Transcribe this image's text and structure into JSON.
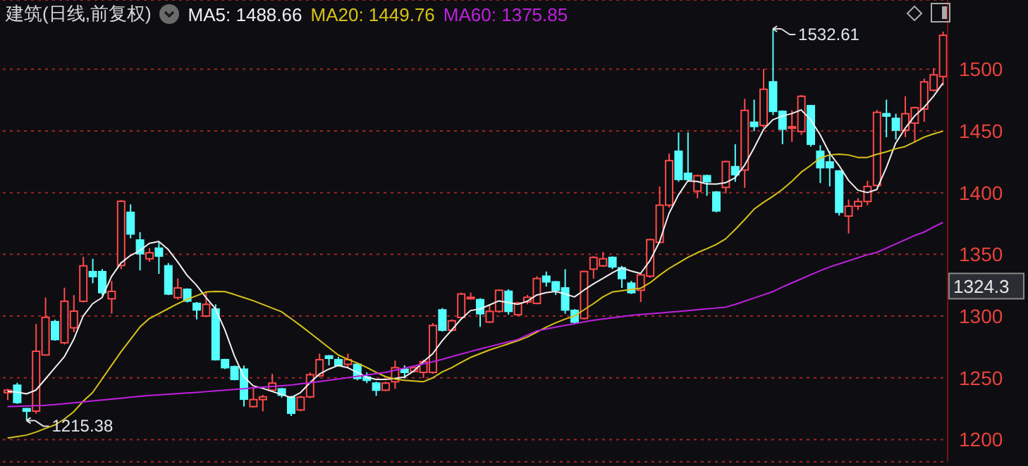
{
  "chart_data": {
    "type": "candlestick",
    "title": "建筑(日线,前复权)",
    "categories": [
      null,
      null,
      null,
      null,
      null,
      null,
      null,
      null,
      null,
      null,
      null,
      null,
      null,
      null,
      null,
      null,
      null,
      null,
      null,
      null,
      null,
      null,
      null,
      null,
      null,
      null,
      null,
      null,
      null,
      null,
      null,
      null,
      null,
      null,
      null,
      null,
      null,
      null,
      null,
      null,
      null,
      null,
      null,
      null,
      null,
      null,
      null,
      null,
      null,
      null,
      null,
      null,
      null,
      null,
      null,
      null,
      null,
      null,
      null,
      null,
      null,
      null,
      null,
      null,
      null,
      null,
      null,
      null,
      null,
      null,
      null,
      null,
      null,
      null,
      null,
      null,
      null,
      null,
      null,
      null,
      null,
      null,
      null,
      null,
      null,
      null,
      null,
      null,
      null,
      null,
      null,
      null,
      null,
      null,
      null,
      null,
      null,
      null,
      null,
      null
    ],
    "ohlc": [
      [
        1238,
        1241,
        1232,
        1240
      ],
      [
        1244,
        1246,
        1229,
        1230
      ],
      [
        1225,
        1225.5,
        1215.38,
        1223
      ],
      [
        1223,
        1293.5,
        1221,
        1271.5
      ],
      [
        1268.5,
        1315,
        1268,
        1299
      ],
      [
        1295.5,
        1297,
        1280,
        1281
      ],
      [
        1278.4,
        1323,
        1277,
        1312
      ],
      [
        1290.5,
        1317,
        1287,
        1304
      ],
      [
        1312,
        1348,
        1311,
        1340.7
      ],
      [
        1336,
        1346.4,
        1326.6,
        1332
      ],
      [
        1336,
        1338,
        1317,
        1319
      ],
      [
        1314,
        1328.5,
        1302,
        1320
      ],
      [
        1341,
        1394,
        1338,
        1393
      ],
      [
        1384,
        1390.5,
        1363,
        1366.5
      ],
      [
        1361.6,
        1368,
        1337,
        1350.5
      ],
      [
        1346.4,
        1355,
        1344,
        1351.3
      ],
      [
        1355,
        1359.7,
        1334.2,
        1348.6
      ],
      [
        1340.7,
        1343,
        1317,
        1317.9
      ],
      [
        1315,
        1330.4,
        1313.3,
        1322.8
      ],
      [
        1321.7,
        1322.5,
        1311,
        1312.2
      ],
      [
        1310.3,
        1311.4,
        1297.3,
        1305
      ],
      [
        1300,
        1320,
        1299.2,
        1309.5
      ],
      [
        1305.7,
        1309.5,
        1264,
        1264.7
      ],
      [
        1264.7,
        1265.4,
        1257,
        1258.2
      ],
      [
        1259,
        1260,
        1248,
        1248.7
      ],
      [
        1257,
        1260,
        1226.7,
        1232.7
      ],
      [
        1226.7,
        1241.9,
        1226,
        1232.4
      ],
      [
        1232.4,
        1236.2,
        1222.9,
        1234.6
      ],
      [
        1240,
        1253.3,
        1239.2,
        1245.7
      ],
      [
        1241,
        1241.9,
        1234,
        1236
      ],
      [
        1234.3,
        1235.4,
        1219,
        1221.3
      ],
      [
        1224,
        1235.4,
        1222.9,
        1234.3
      ],
      [
        1234.6,
        1254.4,
        1233.5,
        1252.5
      ],
      [
        1251.7,
        1269.6,
        1250.6,
        1264.7
      ],
      [
        1267.7,
        1268.5,
        1260.1,
        1265.8
      ],
      [
        1264.7,
        1267,
        1259.3,
        1260.1
      ],
      [
        1260.9,
        1269.6,
        1258.2,
        1264.7
      ],
      [
        1260.9,
        1262,
        1248,
        1249.5
      ],
      [
        1250.6,
        1254.4,
        1245.7,
        1248
      ],
      [
        1245.7,
        1246.8,
        1235.4,
        1240
      ],
      [
        1240,
        1246.8,
        1239.2,
        1245.7
      ],
      [
        1246.8,
        1263.9,
        1241.1,
        1258.2
      ],
      [
        1257,
        1260.1,
        1249.5,
        1254.4
      ],
      [
        1255.2,
        1259.3,
        1254.4,
        1258.2
      ],
      [
        1254.4,
        1264.7,
        1249.8,
        1263.1
      ],
      [
        1254.4,
        1294.3,
        1253.3,
        1292.4
      ],
      [
        1305,
        1306.5,
        1287.5,
        1288.6
      ],
      [
        1288.6,
        1297.3,
        1287.5,
        1296.2
      ],
      [
        1298.9,
        1319,
        1297.3,
        1317.9
      ],
      [
        1314.1,
        1319,
        1313.3,
        1315.2
      ],
      [
        1313.3,
        1314.4,
        1291.3,
        1301.9
      ],
      [
        1295.2,
        1309.5,
        1294.3,
        1303.8
      ],
      [
        1303.8,
        1321.7,
        1302.7,
        1320.9
      ],
      [
        1320.1,
        1321.7,
        1301.1,
        1303.8
      ],
      [
        1301.1,
        1311.4,
        1300,
        1310.6
      ],
      [
        1311.4,
        1317.1,
        1309.5,
        1315.2
      ],
      [
        1310.3,
        1332.3,
        1309.5,
        1330.4
      ],
      [
        1332.3,
        1336.1,
        1323.9,
        1327.7
      ],
      [
        1327.7,
        1328.5,
        1317.1,
        1320.9
      ],
      [
        1322.8,
        1338,
        1301.9,
        1304.9
      ],
      [
        1304.6,
        1305.7,
        1294.3,
        1295.1
      ],
      [
        1298.1,
        1336.9,
        1297.3,
        1336.1
      ],
      [
        1338,
        1348.6,
        1330.4,
        1347.5
      ],
      [
        1340.7,
        1352,
        1339.9,
        1346.4
      ],
      [
        1347.5,
        1348.3,
        1338,
        1339.9
      ],
      [
        1339.1,
        1340.7,
        1322.8,
        1330.4
      ],
      [
        1326.6,
        1328.5,
        1317.9,
        1319
      ],
      [
        1320.9,
        1334.2,
        1311.4,
        1333.4
      ],
      [
        1332.3,
        1362.7,
        1331,
        1361.9
      ],
      [
        1359.7,
        1405,
        1359,
        1389.8
      ],
      [
        1389.8,
        1431.6,
        1387.9,
        1425.9
      ],
      [
        1433.5,
        1448.7,
        1408.8,
        1410.7
      ],
      [
        1415.6,
        1448.7,
        1409,
        1410.7
      ],
      [
        1401.2,
        1414.5,
        1395.5,
        1413.7
      ],
      [
        1413.7,
        1414.5,
        1397.4,
        1408.8
      ],
      [
        1400.4,
        1401.2,
        1384.1,
        1385.2
      ],
      [
        1404.2,
        1425.9,
        1399.3,
        1425.1
      ],
      [
        1421,
        1439.2,
        1408.8,
        1414.5
      ],
      [
        1418.3,
        1476,
        1403.9,
        1466.6
      ],
      [
        1457,
        1475.3,
        1449.8,
        1453.6
      ],
      [
        1454.4,
        1500,
        1452.5,
        1483.7
      ],
      [
        1489.7,
        1532.61,
        1462.8,
        1465.8
      ],
      [
        1465.8,
        1466.6,
        1439.2,
        1451.4
      ],
      [
        1452.5,
        1466.6,
        1441.1,
        1453.3
      ],
      [
        1449.5,
        1479.1,
        1446.8,
        1478
      ],
      [
        1470.4,
        1471,
        1437.3,
        1439.2
      ],
      [
        1433.5,
        1438.4,
        1407.7,
        1420.2
      ],
      [
        1424.8,
        1433.5,
        1405,
        1420.2
      ],
      [
        1417.5,
        1418.3,
        1381.4,
        1384.1
      ],
      [
        1381,
        1394.4,
        1367,
        1389
      ],
      [
        1389,
        1395.5,
        1386,
        1392.8
      ],
      [
        1392.8,
        1409.6,
        1389.8,
        1405
      ],
      [
        1405.8,
        1466.9,
        1405,
        1465
      ],
      [
        1463.9,
        1475.3,
        1444.9,
        1462
      ],
      [
        1460.1,
        1463.9,
        1443,
        1450.6
      ],
      [
        1450.6,
        1478,
        1444.9,
        1463.9
      ],
      [
        1456.3,
        1469.6,
        1441.1,
        1468.8
      ],
      [
        1467.7,
        1492.4,
        1457.4,
        1489.7
      ],
      [
        1482.9,
        1500.8,
        1481.8,
        1495.4
      ],
      [
        1494,
        1530.4,
        1486.7,
        1527.4
      ]
    ],
    "colors": [
      "#ff4a4a",
      "#54ffff",
      "#54ffff",
      "#ff4a4a",
      "#ff4a4a",
      "#54ffff",
      "#ff4a4a",
      "#ff4a4a",
      "#ff4a4a",
      "#54ffff",
      "#54ffff",
      "#ff4a4a",
      "#ff4a4a",
      "#54ffff",
      "#54ffff",
      "#ff4a4a",
      "#54ffff",
      "#54ffff",
      "#ff4a4a",
      "#54ffff",
      "#54ffff",
      "#ff4a4a",
      "#54ffff",
      "#54ffff",
      "#54ffff",
      "#54ffff",
      "#ff4a4a",
      "#ff4a4a",
      "#ff4a4a",
      "#54ffff",
      "#54ffff",
      "#ff4a4a",
      "#ff4a4a",
      "#ff4a4a",
      "#54ffff",
      "#54ffff",
      "#ff4a4a",
      "#54ffff",
      "#54ffff",
      "#54ffff",
      "#ff4a4a",
      "#ff4a4a",
      "#54ffff",
      "#ff4a4a",
      "#ff4a4a",
      "#ff4a4a",
      "#54ffff",
      "#ff4a4a",
      "#ff4a4a",
      "#ff4a4a",
      "#54ffff",
      "#ff4a4a",
      "#ff4a4a",
      "#54ffff",
      "#ff4a4a",
      "#ff4a4a",
      "#ff4a4a",
      "#54ffff",
      "#54ffff",
      "#54ffff",
      "#54ffff",
      "#ff4a4a",
      "#ff4a4a",
      "#ff4a4a",
      "#54ffff",
      "#54ffff",
      "#54ffff",
      "#ff4a4a",
      "#ff4a4a",
      "#ff4a4a",
      "#ff4a4a",
      "#54ffff",
      "#54ffff",
      "#ff4a4a",
      "#54ffff",
      "#54ffff",
      "#ff4a4a",
      "#54ffff",
      "#ff4a4a",
      "#54ffff",
      "#ff4a4a",
      "#54ffff",
      "#54ffff",
      "#ff4a4a",
      "#ff4a4a",
      "#54ffff",
      "#54ffff",
      "#54ffff",
      "#54ffff",
      "#ff4a4a",
      "#ff4a4a",
      "#ff4a4a",
      "#ff4a4a",
      "#54ffff",
      "#54ffff",
      "#ff4a4a",
      "#ff4a4a",
      "#ff4a4a",
      "#ff4a4a",
      "#ff4a4a"
    ],
    "series": [
      {
        "name": "MA5: 1488.66",
        "type": "line",
        "color": "#f0f0f0",
        "values": [
          1239,
          1238.5,
          1237,
          1240,
          1249,
          1258,
          1267,
          1281,
          1300,
          1310,
          1315,
          1332,
          1343,
          1349,
          1353,
          1358.9,
          1360.5,
          1354,
          1344,
          1333,
          1325,
          1315,
          1306,
          1289,
          1268,
          1251,
          1243.5,
          1241.5,
          1239,
          1236.5,
          1234,
          1238,
          1246,
          1253,
          1257,
          1260,
          1258.2,
          1254.5,
          1250.6,
          1248.7,
          1248.7,
          1249.5,
          1250.6,
          1255.5,
          1263,
          1269.5,
          1280,
          1288.6,
          1297.5,
          1304.5,
          1305.7,
          1309,
          1312.3,
          1311,
          1309.5,
          1312,
          1317,
          1319,
          1320,
          1318,
          1315.5,
          1321,
          1326,
          1330.5,
          1335,
          1339,
          1336.5,
          1334.5,
          1345,
          1360,
          1383,
          1398,
          1409.5,
          1409,
          1407,
          1406.9,
          1408,
          1412,
          1422,
          1436,
          1451,
          1459,
          1462,
          1464,
          1467,
          1459,
          1447,
          1432,
          1422,
          1410,
          1402,
          1400,
          1402.5,
          1420,
          1440,
          1452,
          1462,
          1469,
          1478,
          1488.66
        ]
      },
      {
        "name": "MA20: 1449.76",
        "type": "line",
        "color": "#d8c21a",
        "values": [
          1201.2,
          1202.4,
          1203.6,
          1206,
          1209,
          1211.8,
          1216.5,
          1222.5,
          1231,
          1238,
          1249,
          1260,
          1271,
          1281,
          1291,
          1298,
          1302,
          1306,
          1310,
          1313.5,
          1316.5,
          1319.5,
          1320,
          1319.8,
          1317.5,
          1315,
          1312.5,
          1309.5,
          1306.5,
          1303.5,
          1298,
          1292.4,
          1286.5,
          1280.5,
          1274.5,
          1268.5,
          1265,
          1262,
          1258.5,
          1254.5,
          1251,
          1249,
          1248,
          1247.4,
          1246.8,
          1250,
          1254.8,
          1258.2,
          1262.5,
          1266.5,
          1269.5,
          1272.5,
          1275,
          1277.5,
          1280,
          1283,
          1287,
          1291,
          1294.5,
          1297.5,
          1300,
          1305,
          1310,
          1315.5,
          1319.5,
          1320.5,
          1321.5,
          1322.5,
          1327,
          1333,
          1338.5,
          1343,
          1347.5,
          1351.3,
          1354.5,
          1358,
          1362.5,
          1370,
          1378,
          1386.5,
          1392,
          1397,
          1402.5,
          1409,
          1416.5,
          1422,
          1428,
          1430.5,
          1431.2,
          1430.5,
          1428.5,
          1428.5,
          1431,
          1433,
          1435.5,
          1437.3,
          1441,
          1444.9,
          1447.5,
          1449.76
        ]
      },
      {
        "name": "MA60: 1375.85",
        "type": "line",
        "color": "#c020e0",
        "values": [
          1226.7,
          1226.9,
          1227.2,
          1227.4,
          1227.7,
          1228.3,
          1229,
          1229.8,
          1230.5,
          1231.3,
          1232,
          1232.8,
          1233.5,
          1234.3,
          1235,
          1235.7,
          1236.2,
          1236.7,
          1237.2,
          1237.7,
          1238.2,
          1238.8,
          1239.4,
          1240,
          1240.6,
          1241.2,
          1241.8,
          1242.4,
          1243,
          1243.6,
          1244.2,
          1245.1,
          1246,
          1247,
          1248,
          1249,
          1250.1,
          1251.2,
          1252.3,
          1253.4,
          1254.4,
          1256.1,
          1257.8,
          1259.5,
          1261.2,
          1263,
          1265,
          1267.1,
          1269.2,
          1271.3,
          1273.4,
          1275.3,
          1277.2,
          1279.1,
          1281,
          1284.5,
          1288,
          1289.5,
          1291,
          1292.4,
          1293.8,
          1295.3,
          1296.6,
          1297.6,
          1298.6,
          1299.6,
          1300.6,
          1301.3,
          1301.9,
          1302.5,
          1303.1,
          1303.7,
          1304.4,
          1305.1,
          1305.8,
          1306.5,
          1307.2,
          1309.4,
          1312,
          1314.6,
          1317.2,
          1319.8,
          1323.5,
          1326.8,
          1330.1,
          1333.4,
          1336.7,
          1339.7,
          1342.2,
          1344.7,
          1347.2,
          1349.7,
          1351.6,
          1355,
          1358.4,
          1361.8,
          1365.2,
          1368,
          1372,
          1375.85
        ]
      }
    ],
    "ylim": [
      1182,
      1556
    ],
    "yticks": [
      1200,
      1250,
      1300,
      1350,
      1400,
      1450,
      1500
    ],
    "grid": "y",
    "legend": "top left",
    "tick_labels": "y",
    "annotations": [
      "1532.61",
      "1215.38",
      "1324.3"
    ]
  }
}
